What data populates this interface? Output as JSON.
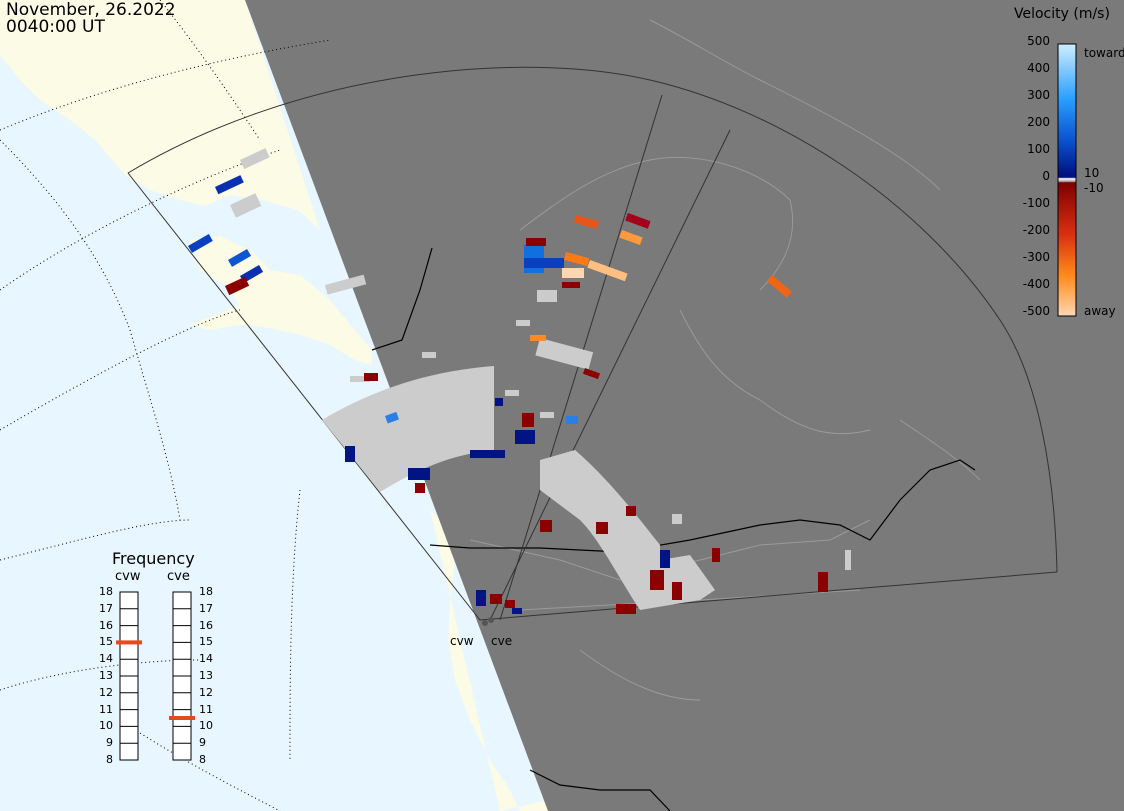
{
  "header": {
    "date": "November, 26.2022",
    "time": "0040:00 UT"
  },
  "colorbar": {
    "title": "Velocity (m/s)",
    "ticks": [
      "500",
      "400",
      "300",
      "200",
      "100",
      "0",
      "-100",
      "-200",
      "-300",
      "-400",
      "-500"
    ],
    "label_toward": "toward",
    "label_away": "away",
    "label_pos": "10",
    "label_neg": "-10",
    "colors": {
      "toward_max": "#cfeeff",
      "toward_min": "#000e7a",
      "away_min": "#7f0000",
      "away_max": "#ffd6b2",
      "ground_scatter": "#cccccc"
    }
  },
  "frequency": {
    "title": "Frequency",
    "radars": [
      {
        "name": "cvw",
        "selected_mhz": 15
      },
      {
        "name": "cve",
        "selected_mhz": 10.5
      }
    ],
    "scale": [
      "18",
      "17",
      "16",
      "15",
      "14",
      "13",
      "12",
      "11",
      "10",
      "9",
      "8"
    ],
    "indicator_color": "#e8481c"
  },
  "sites": [
    {
      "name": "cvw"
    },
    {
      "name": "cve"
    }
  ],
  "map_colors": {
    "ocean": "#e8f6ff",
    "land": "#fbfbe6",
    "night": "#7a7a7a",
    "grid": "#000000"
  }
}
